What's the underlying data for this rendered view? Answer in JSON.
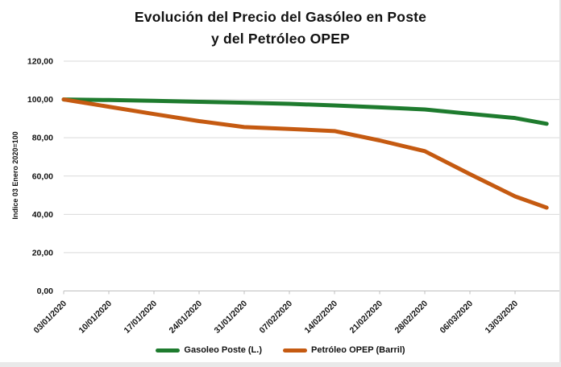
{
  "title": {
    "line1": "Evolución del Precio del Gasóleo en Poste",
    "line2": "y del Petróleo OPEP"
  },
  "chart_data": {
    "type": "line",
    "categories": [
      "03/01/2020",
      "10/01/2020",
      "17/01/2020",
      "24/01/2020",
      "31/01/2020",
      "07/02/2020",
      "14/02/2020",
      "21/02/2020",
      "28/02/2020",
      "06/03/2020",
      "13/03/2020"
    ],
    "x_index": [
      0,
      1,
      2,
      3,
      4,
      5,
      6,
      7,
      8,
      9,
      10,
      10.7
    ],
    "x_note": "series lines extend about 0.7 of one weekly interval past the last labeled tick (13/03/2020)",
    "series": [
      {
        "name": "Gasoleo Poste (L.)",
        "color": "#1e7b2e",
        "values": [
          100,
          99.7,
          99.3,
          98.8,
          98.3,
          97.7,
          96.9,
          95.9,
          94.8,
          92.5,
          90.3,
          87.3
        ]
      },
      {
        "name": "Petróleo OPEP (Barril)",
        "color": "#c55a11",
        "values": [
          100,
          96.2,
          92.4,
          88.7,
          85.6,
          84.6,
          83.5,
          78.6,
          73.0,
          61.0,
          49.4,
          43.5
        ]
      }
    ],
    "ylabel": "Indice 03 Enero 2020=100",
    "xlabel": "",
    "ylim": [
      0,
      120
    ],
    "ytick_step": 20,
    "ytick_labels": [
      "0,00",
      "20,00",
      "40,00",
      "60,00",
      "80,00",
      "100,00",
      "120,00"
    ],
    "grid": "horizontal",
    "grid_color": "#d9d9d9",
    "axis_color": "#bfbfbf",
    "legend_position": "bottom"
  }
}
